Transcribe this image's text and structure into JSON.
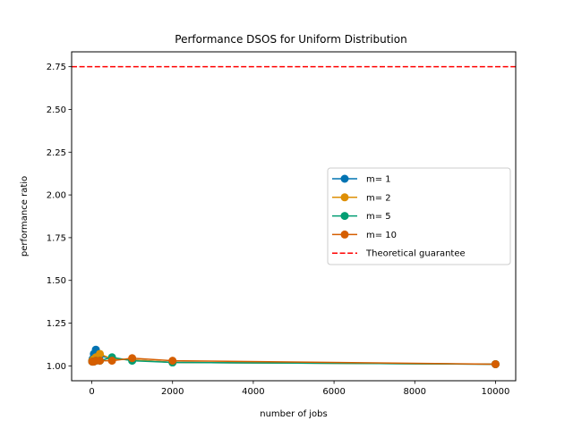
{
  "chart_data": {
    "type": "line",
    "title": "Performance DSOS for Uniform Distribution",
    "xlabel": "number of jobs",
    "ylabel": "performance ratio",
    "xlim": [
      -500,
      10500
    ],
    "ylim": [
      0.913,
      2.837
    ],
    "xticks": [
      0,
      2000,
      4000,
      6000,
      8000,
      10000
    ],
    "xtick_labels": [
      "0",
      "2000",
      "4000",
      "6000",
      "8000",
      "10000"
    ],
    "yticks": [
      1.0,
      1.25,
      1.5,
      1.75,
      2.0,
      2.25,
      2.5,
      2.75
    ],
    "ytick_labels": [
      "1.00",
      "1.25",
      "1.50",
      "1.75",
      "2.00",
      "2.25",
      "2.50",
      "2.75"
    ],
    "grid": false,
    "legend_position": "center-right",
    "series": [
      {
        "name": "m= 1",
        "color": "#0173b2",
        "marker": "circle",
        "x": [
          10,
          20,
          50,
          100,
          200,
          500,
          1000,
          2000,
          10000
        ],
        "y": [
          1.03,
          1.04,
          1.07,
          1.095,
          1.06,
          1.04,
          1.035,
          1.02,
          1.01
        ]
      },
      {
        "name": "m= 2",
        "color": "#de8f05",
        "marker": "circle",
        "x": [
          10,
          20,
          50,
          100,
          200,
          500,
          1000,
          2000,
          10000
        ],
        "y": [
          1.03,
          1.03,
          1.04,
          1.05,
          1.07,
          1.04,
          1.035,
          1.02,
          1.01
        ]
      },
      {
        "name": "m= 5",
        "color": "#029e73",
        "marker": "circle",
        "x": [
          10,
          20,
          50,
          100,
          200,
          500,
          1000,
          2000,
          10000
        ],
        "y": [
          1.025,
          1.025,
          1.025,
          1.03,
          1.03,
          1.05,
          1.03,
          1.02,
          1.01
        ]
      },
      {
        "name": "m= 10",
        "color": "#d55e00",
        "marker": "circle",
        "x": [
          10,
          20,
          50,
          100,
          200,
          500,
          1000,
          2000,
          10000
        ],
        "y": [
          1.025,
          1.025,
          1.025,
          1.03,
          1.03,
          1.03,
          1.045,
          1.03,
          1.01
        ]
      }
    ],
    "reference_line": {
      "name": "Theoretical guarantee",
      "y": 2.75,
      "color": "#ff0000",
      "style": "dashed"
    }
  }
}
